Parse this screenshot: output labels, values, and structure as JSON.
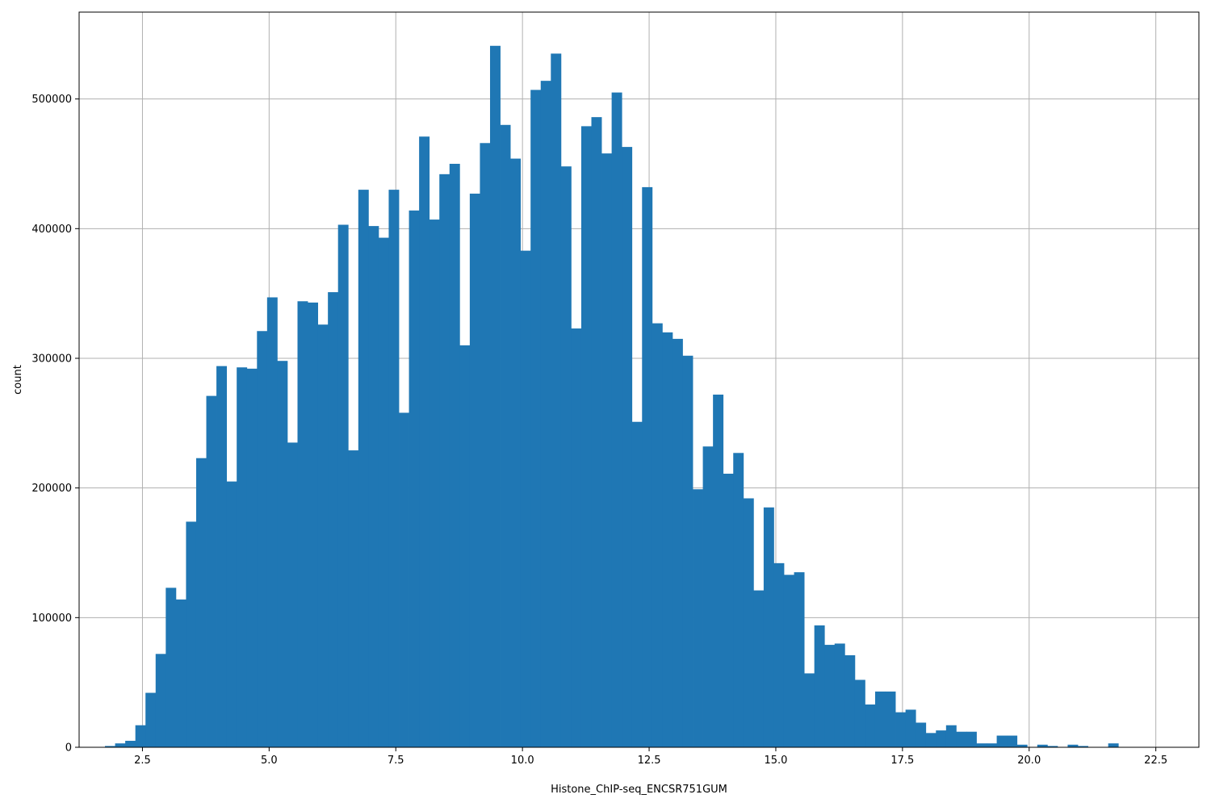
{
  "chart_data": {
    "type": "histogram",
    "title": "",
    "xlabel": "Histone_ChIP-seq_ENCSR751GUM",
    "ylabel": "count",
    "xlim": [
      1.25,
      23.35
    ],
    "ylim": [
      0,
      567000
    ],
    "grid": true,
    "color": "#1f77b4",
    "x_ticks": [
      "2.5",
      "5.0",
      "7.5",
      "10.0",
      "12.5",
      "15.0",
      "17.5",
      "20.0",
      "22.5"
    ],
    "x_tick_values": [
      2.5,
      5.0,
      7.5,
      10.0,
      12.5,
      15.0,
      17.5,
      20.0,
      22.5
    ],
    "y_ticks": [
      "0",
      "100000",
      "200000",
      "300000",
      "400000",
      "500000"
    ],
    "y_tick_values": [
      0,
      100000,
      200000,
      300000,
      400000,
      500000
    ],
    "bin_start": 1.76,
    "bin_width": 0.2,
    "values": [
      1000,
      3000,
      5000,
      17000,
      42000,
      72000,
      123000,
      114000,
      174000,
      223000,
      271000,
      294000,
      205000,
      293000,
      292000,
      321000,
      347000,
      298000,
      235000,
      344000,
      343000,
      326000,
      351000,
      403000,
      229000,
      430000,
      402000,
      393000,
      430000,
      258000,
      414000,
      471000,
      407000,
      442000,
      450000,
      310000,
      427000,
      466000,
      541000,
      480000,
      454000,
      383000,
      507000,
      514000,
      535000,
      448000,
      323000,
      479000,
      486000,
      458000,
      505000,
      463000,
      251000,
      432000,
      327000,
      320000,
      315000,
      302000,
      199000,
      232000,
      272000,
      211000,
      227000,
      192000,
      121000,
      185000,
      142000,
      133000,
      135000,
      57000,
      94000,
      79000,
      80000,
      71000,
      52000,
      33000,
      43000,
      43000,
      27000,
      29000,
      19000,
      11000,
      13000,
      17000,
      12000,
      12000,
      3000,
      3000,
      9000,
      9000,
      2000,
      0,
      2000,
      1000,
      0,
      2000,
      1000,
      0,
      0,
      3000
    ]
  }
}
